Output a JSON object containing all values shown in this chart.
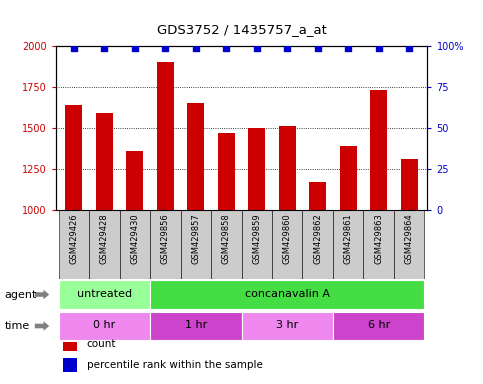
{
  "title": "GDS3752 / 1435757_a_at",
  "samples": [
    "GSM429426",
    "GSM429428",
    "GSM429430",
    "GSM429856",
    "GSM429857",
    "GSM429858",
    "GSM429859",
    "GSM429860",
    "GSM429862",
    "GSM429861",
    "GSM429863",
    "GSM429864"
  ],
  "counts": [
    1640,
    1590,
    1360,
    1900,
    1650,
    1470,
    1500,
    1510,
    1170,
    1390,
    1730,
    1310
  ],
  "percentile_ranks": [
    99,
    99,
    99,
    99,
    99,
    99,
    99,
    99,
    99,
    99,
    99,
    99
  ],
  "bar_color": "#cc0000",
  "dot_color": "#0000cc",
  "ylim_left": [
    1000,
    2000
  ],
  "ylim_right": [
    0,
    100
  ],
  "yticks_left": [
    1000,
    1250,
    1500,
    1750,
    2000
  ],
  "yticks_right": [
    0,
    25,
    50,
    75,
    100
  ],
  "ytick_right_labels": [
    "0",
    "25",
    "50",
    "75",
    "100%"
  ],
  "agent_groups": [
    {
      "label": "untreated",
      "start": 0,
      "end": 3,
      "color": "#99ff99"
    },
    {
      "label": "concanavalin A",
      "start": 3,
      "end": 12,
      "color": "#44dd44"
    }
  ],
  "time_groups": [
    {
      "label": "0 hr",
      "start": 0,
      "end": 3,
      "color": "#ee88ee"
    },
    {
      "label": "1 hr",
      "start": 3,
      "end": 6,
      "color": "#cc44cc"
    },
    {
      "label": "3 hr",
      "start": 6,
      "end": 9,
      "color": "#ee88ee"
    },
    {
      "label": "6 hr",
      "start": 9,
      "end": 12,
      "color": "#cc44cc"
    }
  ],
  "legend_items": [
    {
      "color": "#cc0000",
      "label": "count"
    },
    {
      "color": "#0000cc",
      "label": "percentile rank within the sample"
    }
  ],
  "xtick_bg_color": "#cccccc",
  "plot_bg": "#ffffff",
  "bar_width": 0.55
}
